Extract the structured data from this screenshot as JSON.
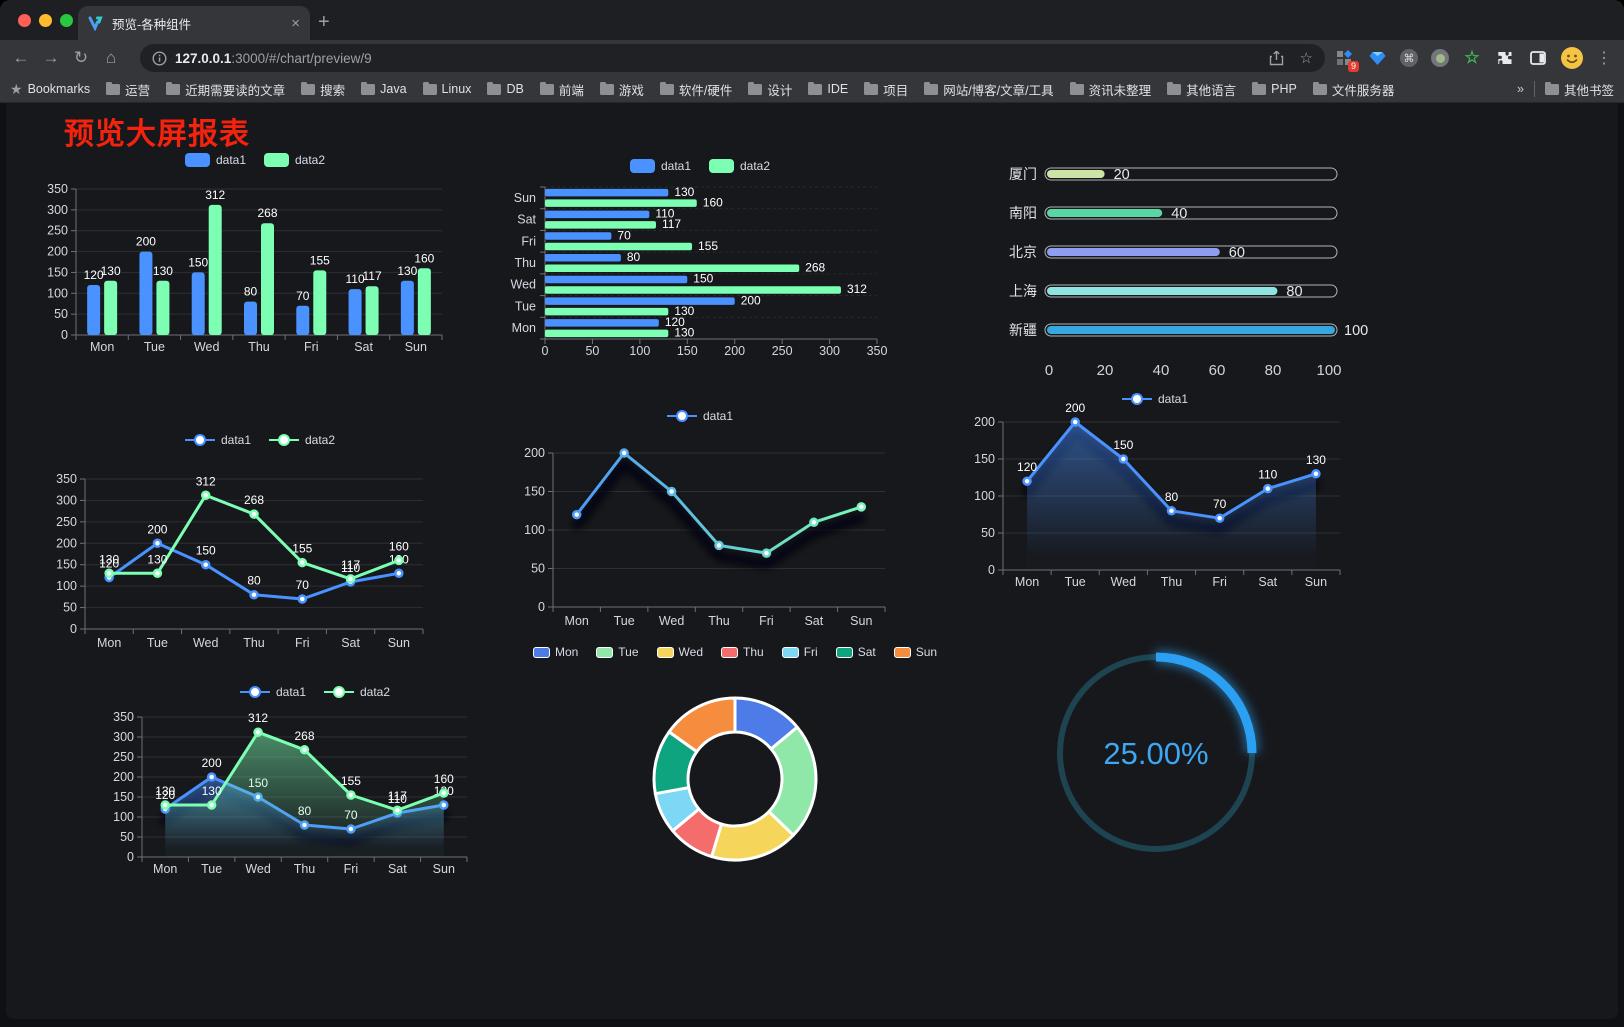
{
  "browser": {
    "tab": {
      "title": "预览-各种组件",
      "close_label": "×",
      "new_tab_label": "+"
    },
    "nav": {
      "back": "←",
      "forward": "→",
      "reload": "↻",
      "home": "⌂"
    },
    "omnibox": {
      "host": "127.0.0.1",
      "path": ":3000/#/chart/preview/9",
      "info_icon": "i",
      "star": "☆"
    },
    "extension_badge": "9",
    "menu_dots": "⋮",
    "bookmarks": {
      "label": "Bookmarks",
      "folders": [
        "运营",
        "近期需要读的文章",
        "搜索",
        "Java",
        "Linux",
        "DB",
        "前端",
        "游戏",
        "软件/硬件",
        "设计",
        "IDE",
        "项目",
        "网站/博客/文章/工具",
        "资讯未整理",
        "其他语言",
        "PHP",
        "文件服务器"
      ],
      "overflow": "»",
      "other": "其他书签"
    }
  },
  "page": {
    "title": "预览大屏报表",
    "title_color": "#f5220d"
  },
  "chart_data": [
    {
      "id": "bar-grouped",
      "type": "bar",
      "categories": [
        "Mon",
        "Tue",
        "Wed",
        "Thu",
        "Fri",
        "Sat",
        "Sun"
      ],
      "series": [
        {
          "name": "data1",
          "color": "#4992ff",
          "values": [
            120,
            200,
            150,
            80,
            70,
            110,
            130
          ]
        },
        {
          "name": "data2",
          "color": "#7cffb2",
          "values": [
            130,
            130,
            312,
            268,
            155,
            117,
            160
          ]
        }
      ],
      "ylim": [
        0,
        350
      ],
      "ystep": 50,
      "legend_position": "top",
      "grid": true
    },
    {
      "id": "bar-horizontal",
      "type": "hbar",
      "categories": [
        "Mon",
        "Tue",
        "Wed",
        "Thu",
        "Fri",
        "Sat",
        "Sun"
      ],
      "series": [
        {
          "name": "data1",
          "color": "#4992ff",
          "values": [
            120,
            200,
            150,
            80,
            70,
            110,
            130
          ]
        },
        {
          "name": "data2",
          "color": "#7cffb2",
          "values": [
            130,
            130,
            312,
            268,
            155,
            117,
            160
          ]
        }
      ],
      "xlim": [
        0,
        350
      ],
      "xstep": 50
    },
    {
      "id": "progress-bars",
      "type": "progress",
      "rows": [
        {
          "label": "厦门",
          "value": 20,
          "color": "#cde5a4"
        },
        {
          "label": "南阳",
          "value": 40,
          "color": "#58d7a3"
        },
        {
          "label": "北京",
          "value": 60,
          "color": "#8f9df1"
        },
        {
          "label": "上海",
          "value": 80,
          "color": "#8fe4e0"
        },
        {
          "label": "新疆",
          "value": 100,
          "color": "#35a8e0"
        }
      ],
      "max": 100,
      "ticks": [
        0,
        20,
        40,
        60,
        80,
        100
      ]
    },
    {
      "id": "line-two",
      "type": "line",
      "categories": [
        "Mon",
        "Tue",
        "Wed",
        "Thu",
        "Fri",
        "Sat",
        "Sun"
      ],
      "series": [
        {
          "name": "data1",
          "color": "#4992ff",
          "values": [
            120,
            200,
            150,
            80,
            70,
            110,
            130
          ]
        },
        {
          "name": "data2",
          "color": "#7cffb2",
          "values": [
            130,
            130,
            312,
            268,
            155,
            117,
            160
          ]
        }
      ],
      "ylim": [
        0,
        350
      ],
      "ystep": 50,
      "show_labels": true
    },
    {
      "id": "line-gradient",
      "type": "line",
      "categories": [
        "Mon",
        "Tue",
        "Wed",
        "Thu",
        "Fri",
        "Sat",
        "Sun"
      ],
      "series": [
        {
          "name": "data1",
          "color": "#4992ff",
          "color2": "#7cffb2",
          "gradient": true,
          "shadow": true,
          "values": [
            120,
            200,
            150,
            80,
            70,
            110,
            130
          ]
        }
      ],
      "ylim": [
        0,
        200
      ],
      "ystep": 50,
      "show_labels": false
    },
    {
      "id": "line-area",
      "type": "line",
      "categories": [
        "Mon",
        "Tue",
        "Wed",
        "Thu",
        "Fri",
        "Sat",
        "Sun"
      ],
      "series": [
        {
          "name": "data1",
          "color": "#4992ff",
          "area": true,
          "shadow": true,
          "values": [
            120,
            200,
            150,
            80,
            70,
            110,
            130
          ]
        }
      ],
      "ylim": [
        0,
        200
      ],
      "ystep": 50,
      "show_labels": true
    },
    {
      "id": "line-area-two",
      "type": "line",
      "categories": [
        "Mon",
        "Tue",
        "Wed",
        "Thu",
        "Fri",
        "Sat",
        "Sun"
      ],
      "series": [
        {
          "name": "data1",
          "color": "#4992ff",
          "area": true,
          "shadow": true,
          "values": [
            120,
            200,
            150,
            80,
            70,
            110,
            130
          ]
        },
        {
          "name": "data2",
          "color": "#7cffb2",
          "area": true,
          "values": [
            130,
            130,
            312,
            268,
            155,
            117,
            160
          ]
        }
      ],
      "ylim": [
        0,
        350
      ],
      "ystep": 50,
      "show_labels": true
    },
    {
      "id": "donut",
      "type": "pie",
      "items": [
        {
          "name": "Mon",
          "value": 120,
          "color": "#4d7be8"
        },
        {
          "name": "Tue",
          "value": 200,
          "color": "#90e8a8"
        },
        {
          "name": "Wed",
          "value": 150,
          "color": "#f5d65a"
        },
        {
          "name": "Thu",
          "value": 80,
          "color": "#f56c6c"
        },
        {
          "name": "Fri",
          "value": 70,
          "color": "#7ed7f4"
        },
        {
          "name": "Sat",
          "value": 110,
          "color": "#0fa480"
        },
        {
          "name": "Sun",
          "value": 130,
          "color": "#f68c3e"
        }
      ],
      "inner_radius": true
    },
    {
      "id": "gauge",
      "type": "gauge",
      "value": 25,
      "label": "25.00%",
      "color": "#2ba0f2",
      "track_color": "#1d4450",
      "text_color": "#3da7f3"
    }
  ]
}
